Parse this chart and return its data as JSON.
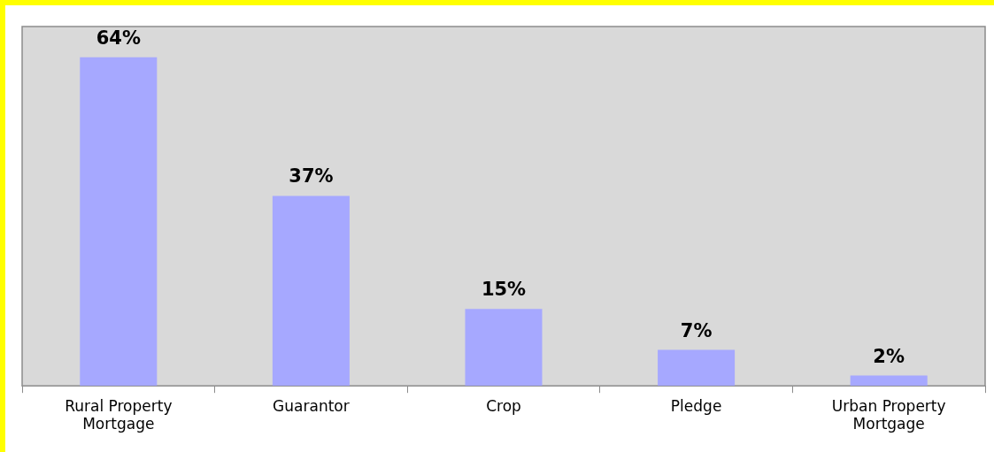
{
  "chart_data": {
    "type": "bar",
    "categories": [
      "Rural Property Mortgage",
      "Guarantor",
      "Crop",
      "Pledge",
      "Urban Property Mortgage"
    ],
    "values": [
      64,
      37,
      15,
      7,
      2
    ],
    "value_labels": [
      "64%",
      "37%",
      "15%",
      "7%",
      "2%"
    ],
    "color": "#a6a8ff"
  }
}
